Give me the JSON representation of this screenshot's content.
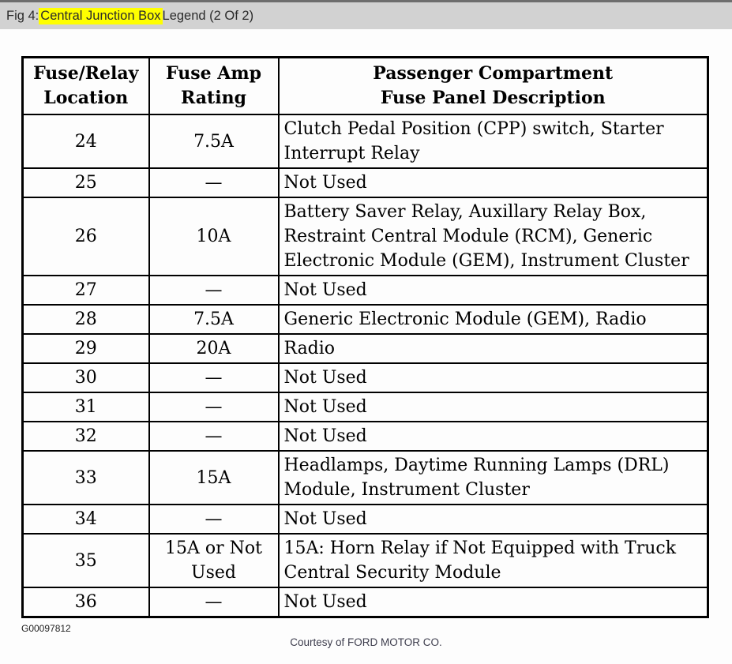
{
  "figure_caption": {
    "prefix": "Fig 4: ",
    "highlighted": "Central Junction Box",
    "suffix": " Legend (2 Of 2)",
    "highlight_color": "#ffff00"
  },
  "table": {
    "columns": [
      "Fuse/Relay\nLocation",
      "Fuse Amp\nRating",
      "Passenger Compartment\nFuse Panel Description"
    ],
    "rows": [
      {
        "location": "24",
        "rating": "7.5A",
        "description": "Clutch Pedal Position (CPP) switch, Starter Interrupt Relay"
      },
      {
        "location": "25",
        "rating": "—",
        "description": "Not Used"
      },
      {
        "location": "26",
        "rating": "10A",
        "description": "Battery Saver Relay, Auxillary Relay Box, Restraint Central Module (RCM), Generic Electronic Module (GEM), Instrument Cluster"
      },
      {
        "location": "27",
        "rating": "—",
        "description": "Not Used"
      },
      {
        "location": "28",
        "rating": "7.5A",
        "description": "Generic Electronic Module (GEM), Radio"
      },
      {
        "location": "29",
        "rating": "20A",
        "description": "Radio"
      },
      {
        "location": "30",
        "rating": "—",
        "description": "Not Used"
      },
      {
        "location": "31",
        "rating": "—",
        "description": "Not Used"
      },
      {
        "location": "32",
        "rating": "—",
        "description": "Not Used"
      },
      {
        "location": "33",
        "rating": "15A",
        "description": "Headlamps, Daytime Running Lamps (DRL) Module, Instrument Cluster"
      },
      {
        "location": "34",
        "rating": "—",
        "description": "Not Used"
      },
      {
        "location": "35",
        "rating": "15A or Not Used",
        "description": "15A: Horn Relay if Not Equipped with Truck Central Security Module"
      },
      {
        "location": "36",
        "rating": "—",
        "description": "Not Used"
      }
    ]
  },
  "document_code": "G00097812",
  "courtesy_note": "Courtesy of FORD MOTOR CO."
}
